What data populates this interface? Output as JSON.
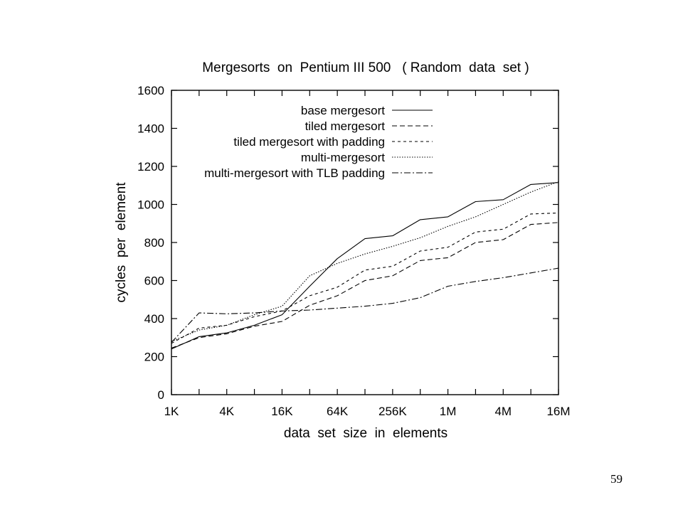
{
  "page_number": "59",
  "chart_data": {
    "type": "line",
    "title": "Mergesorts  on  Pentium III 500   ( Random  data  set )",
    "xlabel": "data  set  size  in  elements",
    "ylabel": "cycles  per  element",
    "x": [
      "1K",
      "2K",
      "4K",
      "8K",
      "16K",
      "32K",
      "64K",
      "128K",
      "256K",
      "512K",
      "1M",
      "2M",
      "4M",
      "8M",
      "16M"
    ],
    "x_tick_labels": [
      "1K",
      "4K",
      "16K",
      "64K",
      "256K",
      "1M",
      "4M",
      "16M"
    ],
    "y_ticks": [
      0,
      200,
      400,
      600,
      800,
      1000,
      1200,
      1400,
      1600
    ],
    "ylim": [
      0,
      1600
    ],
    "grid": false,
    "legend_position": "top-right",
    "series": [
      {
        "name": "base mergesort",
        "dash": "solid",
        "values": [
          240,
          305,
          325,
          365,
          420,
          570,
          715,
          820,
          835,
          920,
          935,
          1015,
          1025,
          1105,
          1115
        ]
      },
      {
        "name": "tiled mergesort",
        "dash": "dashed",
        "values": [
          245,
          300,
          320,
          360,
          385,
          470,
          520,
          600,
          625,
          705,
          720,
          800,
          815,
          895,
          905
        ]
      },
      {
        "name": "tiled mergesort with padding",
        "dash": "short-dashed",
        "values": [
          270,
          350,
          365,
          410,
          440,
          520,
          565,
          655,
          675,
          755,
          775,
          855,
          870,
          950,
          955
        ]
      },
      {
        "name": "multi-mergesort",
        "dash": "dotted",
        "values": [
          280,
          340,
          365,
          420,
          465,
          625,
          690,
          740,
          780,
          825,
          885,
          935,
          1000,
          1065,
          1120
        ]
      },
      {
        "name": "multi-mergesort with TLB padding",
        "dash": "dash-dot",
        "values": [
          275,
          430,
          425,
          430,
          440,
          445,
          455,
          465,
          480,
          510,
          570,
          595,
          615,
          640,
          665
        ]
      }
    ]
  }
}
